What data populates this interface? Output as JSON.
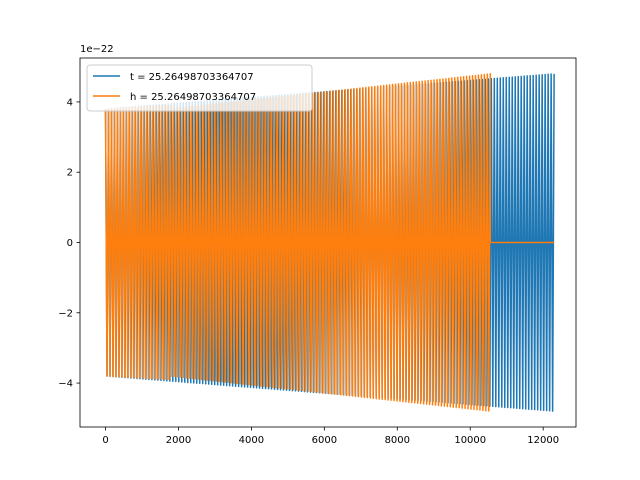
{
  "chart_data": {
    "type": "line",
    "title": "",
    "xlabel": "",
    "ylabel": "",
    "y_offset_label": "1e−22",
    "y_scale_exponent": -22,
    "xlim": [
      -700,
      12900
    ],
    "ylim": [
      -5.25,
      5.25
    ],
    "x_ticks": [
      0,
      2000,
      4000,
      6000,
      8000,
      10000,
      12000
    ],
    "x_tick_labels": [
      "0",
      "2000",
      "4000",
      "6000",
      "8000",
      "10000",
      "12000"
    ],
    "y_ticks": [
      -4,
      -2,
      0,
      2,
      4
    ],
    "y_tick_labels": [
      "−4",
      "−2",
      "0",
      "2",
      "4"
    ],
    "grid": false,
    "legend_position": "upper-left",
    "series": [
      {
        "name": "t = 25.26498703364707",
        "color": "#1f77b4",
        "x_start": 0,
        "x_end": 12300,
        "segments": [
          {
            "kind": "oscillation",
            "x_from": 0,
            "x_to": 12300,
            "amplitude_start": 3.8,
            "amplitude_end": 4.8,
            "cycles": 150
          }
        ]
      },
      {
        "name": "h = 25.26498703364707",
        "color": "#ff7f0e",
        "x_start": 0,
        "x_end": 12300,
        "segments": [
          {
            "kind": "zero",
            "x_from": 0,
            "x_to": 1780
          },
          {
            "kind": "oscillation",
            "x_from": 1780,
            "x_to": 10550,
            "amplitude_start": 3.8,
            "amplitude_end": 4.8,
            "cycles": 108
          },
          {
            "kind": "zero",
            "x_from": 10550,
            "x_to": 12300
          }
        ],
        "overlay_segments": [
          {
            "kind": "oscillation",
            "x_from": 0,
            "x_to": 1780,
            "amplitude_start": 3.8,
            "amplitude_end": 3.9,
            "cycles": 22
          }
        ]
      }
    ]
  }
}
